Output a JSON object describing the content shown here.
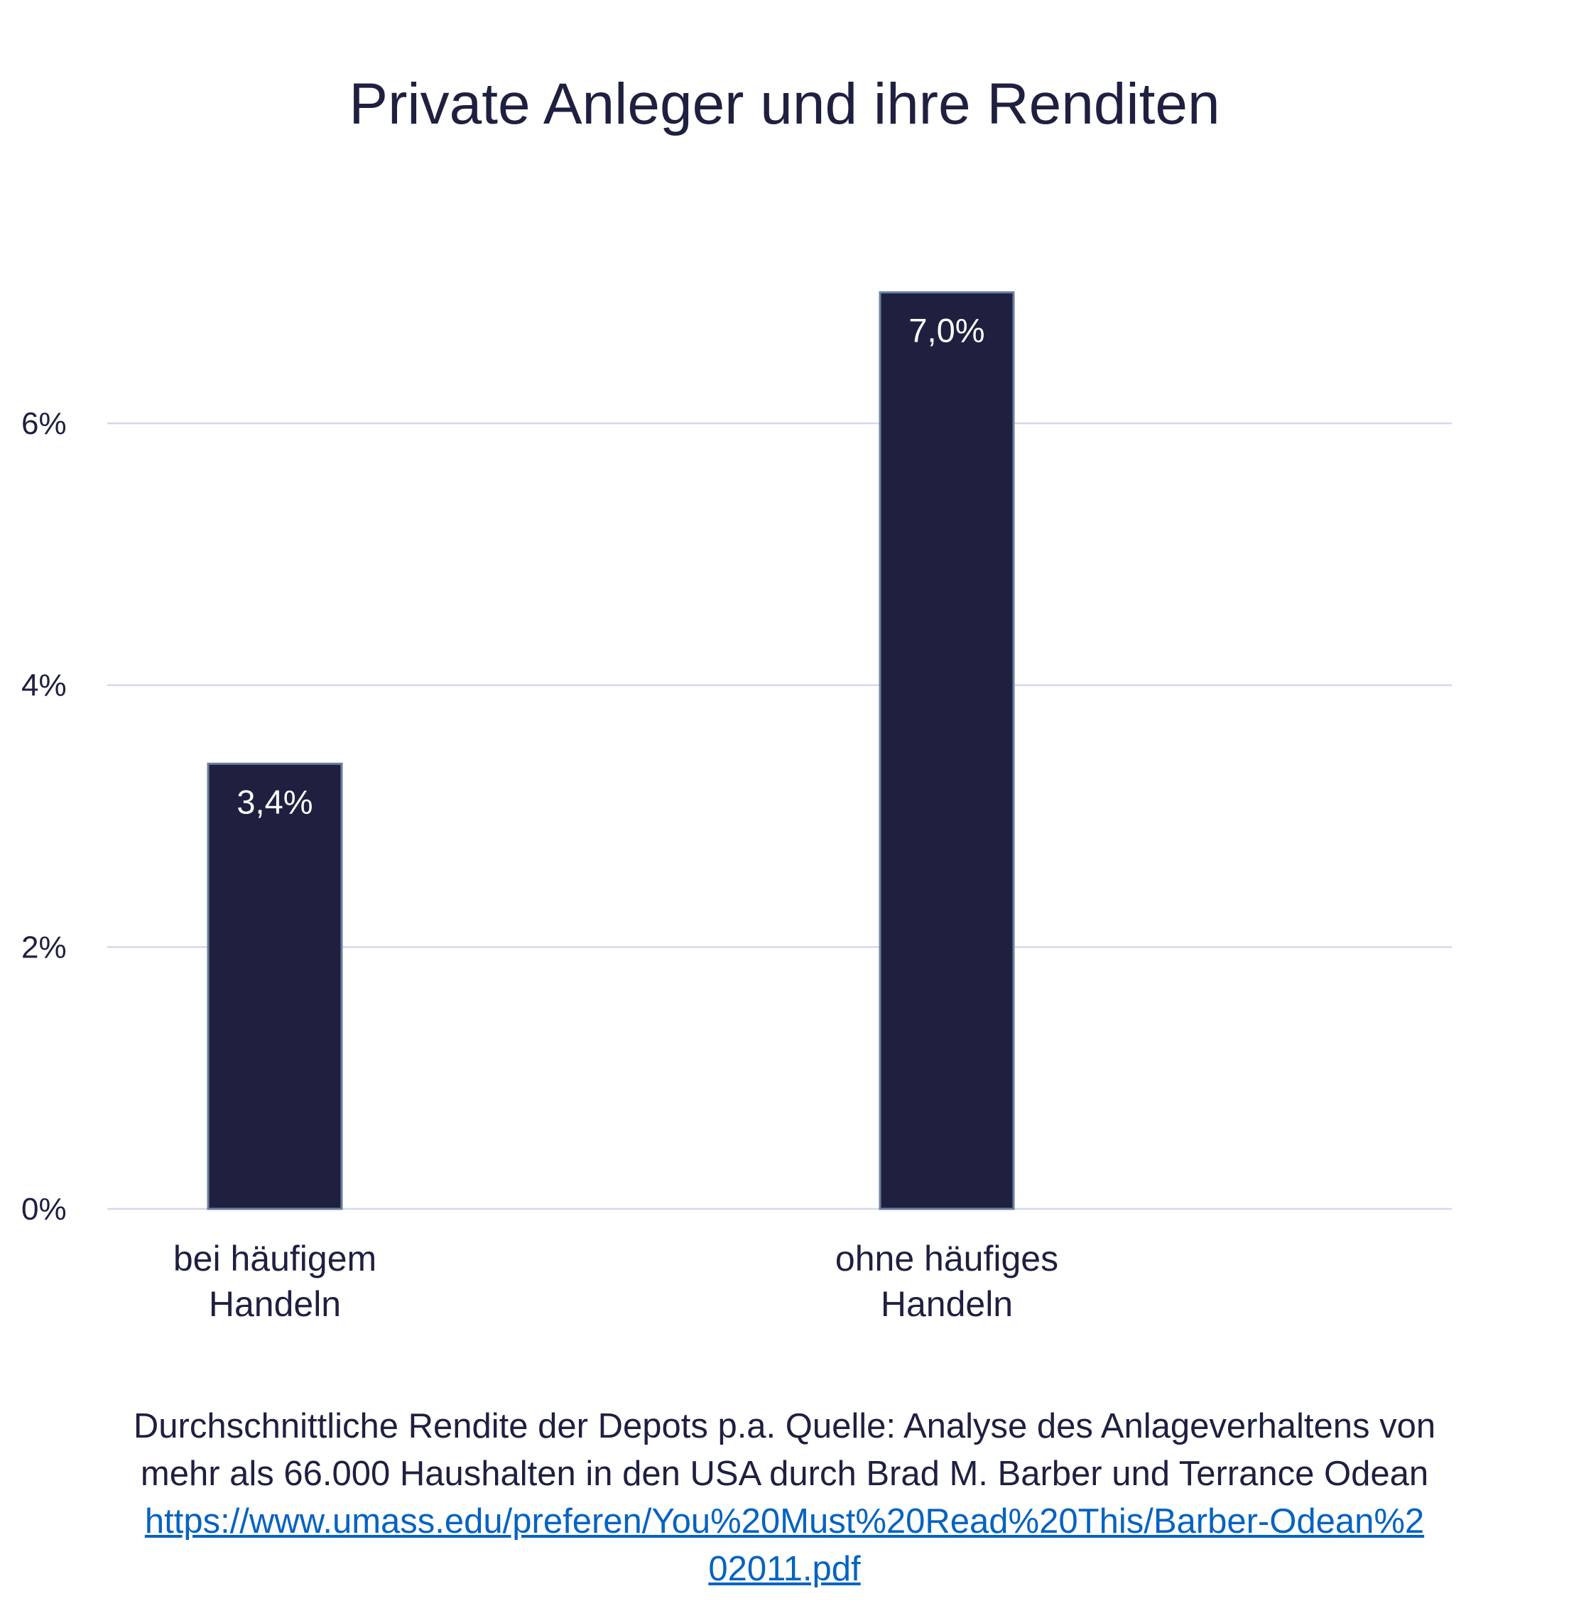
{
  "chart_data": {
    "type": "bar",
    "title": "Private Anleger und ihre Renditen",
    "categories": [
      [
        "bei häufigem",
        "Handeln"
      ],
      [
        "ohne häufiges",
        "Handeln"
      ]
    ],
    "values": [
      3.4,
      7.0
    ],
    "data_labels": [
      "3,4%",
      "7,0%"
    ],
    "yticks": [
      0,
      2,
      4,
      6
    ],
    "ytick_labels": [
      "0%",
      "2%",
      "4%",
      "6%"
    ],
    "ylim": [
      0,
      7.0
    ],
    "grid": true,
    "xlabel": "",
    "ylabel": "",
    "colors": {
      "bar": "#1f2040",
      "bar_border": "#6a7fa0",
      "grid": "#d8d8ea",
      "text": "#1f2040"
    }
  },
  "footer": {
    "line1": "Durchschnittliche Rendite der Depots p.a. Quelle: Analyse des Anlageverhaltens von",
    "line2": "mehr als 66.000 Haushalten in den USA durch Brad M. Barber und Terrance Odean",
    "link": "https://www.umass.edu/preferen/You%20Must%20Read%20This/Barber-Odean%202011.pdf",
    "link_color": "#0563c1"
  }
}
